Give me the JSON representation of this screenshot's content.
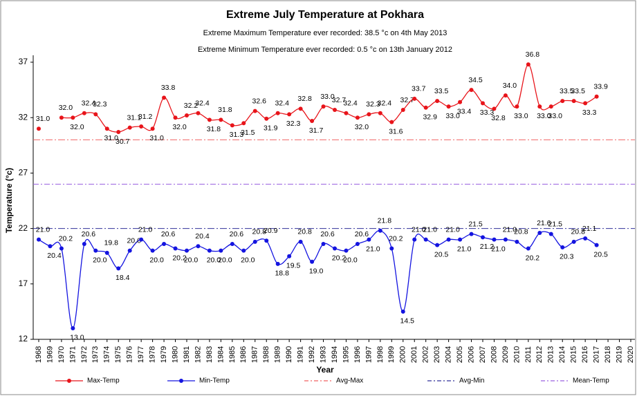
{
  "chart_data": {
    "type": "line",
    "title": "Extreme July Temperature at Pokhara",
    "subtitles": [
      "Extreme Maximum Temperature ever recorded: 38.5 °c on 4th May 2013",
      "Extreme Minimum Temperature ever recorded: 0.5 °c on 13th January 2012"
    ],
    "x_label": "Year",
    "y_label": "Temperature (°c)",
    "categories": [
      "1968",
      "1969",
      "1970",
      "1971",
      "1972",
      "1973",
      "1974",
      "1975",
      "1976",
      "1977",
      "1978",
      "1979",
      "1980",
      "1981",
      "1982",
      "1983",
      "1984",
      "1985",
      "1986",
      "1987",
      "1988",
      "1989",
      "1990",
      "1991",
      "1992",
      "1993",
      "1994",
      "1995",
      "1996",
      "1997",
      "1998",
      "1999",
      "2000",
      "2001",
      "2002",
      "2003",
      "2004",
      "2005",
      "2006",
      "2007",
      "2008",
      "2009",
      "2010",
      "2011",
      "2012",
      "2013",
      "2014",
      "2015",
      "2016",
      "2017",
      "2018",
      "2019",
      "2020"
    ],
    "series": [
      {
        "name": "Max-Temp",
        "color": "#e8141a",
        "values": [
          31.0,
          null,
          32.0,
          32.0,
          32.4,
          32.3,
          31.0,
          30.7,
          31.1,
          31.2,
          31.0,
          33.8,
          32.0,
          32.2,
          32.4,
          31.8,
          31.8,
          31.3,
          31.5,
          32.6,
          31.9,
          32.4,
          32.3,
          32.8,
          31.7,
          33.0,
          32.7,
          32.4,
          32.0,
          32.3,
          32.4,
          31.6,
          32.7,
          33.7,
          32.9,
          33.5,
          33.0,
          33.4,
          34.5,
          33.3,
          32.8,
          34.0,
          33.0,
          36.8,
          33.0,
          33.0,
          33.5,
          33.5,
          33.3,
          33.9,
          null,
          null,
          null
        ],
        "value_labels": [
          "31.0",
          null,
          "32.0",
          "32.0",
          "32.4",
          "32.3",
          "31.0",
          "30.7",
          "31.1",
          "31.2",
          "31.0",
          "33.8",
          "32.0",
          "32.2",
          "32.4",
          "31.8",
          "31.8",
          "31.3",
          "31.5",
          "32.6",
          "31.9",
          "32.4",
          "32.3",
          "32.8",
          "31.7",
          "33.0",
          "32.7",
          "32.4",
          "32.0",
          "32.3",
          "32.4",
          "31.6",
          "32.7",
          "33.7",
          "32.9",
          "33.5",
          "33.0",
          "33.4",
          "34.5",
          "33.3",
          "32.8",
          "34.0",
          "33.0",
          "36.8",
          "33.0",
          "33.0",
          "33.5",
          "33.5",
          "33.3",
          "33.9",
          null,
          null,
          null
        ]
      },
      {
        "name": "Min-Temp",
        "color": "#1414e0",
        "values": [
          21.0,
          20.4,
          20.2,
          13.0,
          20.6,
          20.0,
          19.8,
          18.4,
          20.0,
          21.0,
          20.0,
          20.6,
          20.2,
          20.0,
          20.4,
          20.0,
          20.0,
          20.6,
          20.0,
          20.8,
          20.9,
          18.8,
          19.5,
          20.8,
          19.0,
          20.6,
          20.2,
          20.0,
          20.6,
          21.0,
          21.8,
          20.2,
          14.5,
          21.0,
          21.0,
          20.5,
          21.0,
          21.0,
          21.5,
          21.2,
          21.0,
          21.0,
          20.8,
          20.2,
          21.6,
          21.5,
          20.3,
          20.8,
          21.1,
          20.5,
          null,
          null,
          null
        ],
        "value_labels": [
          "21.0",
          "20.4",
          "20.2",
          "13.0",
          "20.6",
          "20.0",
          "19.8",
          "18.4",
          "20.0",
          "21.0",
          "20.0",
          "20.6",
          "20.2",
          "20.0",
          "20.4",
          "20.0",
          "20.0",
          "20.6",
          "20.0",
          "20.8",
          "20.9",
          "18.8",
          "19.5",
          "20.8",
          "19.0",
          "20.6",
          "20.2",
          "20.0",
          "20.6",
          "21.0",
          "21.8",
          "20.2",
          "14.5",
          "21.0",
          "21.0",
          "20.5",
          "21.0",
          "21.0",
          "21.5",
          "21.2",
          "21.0",
          "21.0",
          "20.8",
          "20.2",
          "21.6",
          "21.5",
          "20.3",
          "20.8",
          "21.1",
          "20.5",
          null,
          null,
          null
        ]
      }
    ],
    "reference_lines": [
      {
        "name": "Avg-Max",
        "value": 30,
        "color": "#f06060"
      },
      {
        "name": "Avg-Min",
        "value": 22,
        "color": "#30309a"
      },
      {
        "name": "Mean-Temp",
        "value": 26,
        "color": "#9a60e0"
      }
    ],
    "ylim": [
      12,
      37
    ],
    "yticks": [
      12,
      17,
      22,
      27,
      32,
      37
    ]
  }
}
